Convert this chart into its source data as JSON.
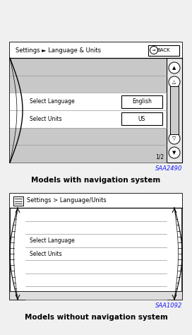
{
  "fig_w": 2.72,
  "fig_h": 4.74,
  "dpi": 100,
  "bg": "#f0f0f0",
  "panel1": {
    "title": "Settings ► Language & Units",
    "back": "⇒BACK",
    "rows": [
      {
        "label": "",
        "value": "",
        "shaded": true
      },
      {
        "label": "",
        "value": "",
        "shaded": true
      },
      {
        "label": "Select Language",
        "value": "English",
        "shaded": false
      },
      {
        "label": "Select Units",
        "value": "US",
        "shaded": false
      },
      {
        "label": "",
        "value": "",
        "shaded": true
      },
      {
        "label": "",
        "value": "",
        "shaded": true
      }
    ],
    "page": "1/2",
    "ref": "SAA2490",
    "caption": "Models with navigation system"
  },
  "panel2": {
    "title": "Settings > Language/Units",
    "rows": [
      {
        "label": ""
      },
      {
        "label": ""
      },
      {
        "label": "Select Language"
      },
      {
        "label": "Select Units"
      },
      {
        "label": ""
      },
      {
        "label": ""
      },
      {
        "label": ""
      }
    ],
    "ref": "SAA1092",
    "caption": "Models without navigation system"
  }
}
